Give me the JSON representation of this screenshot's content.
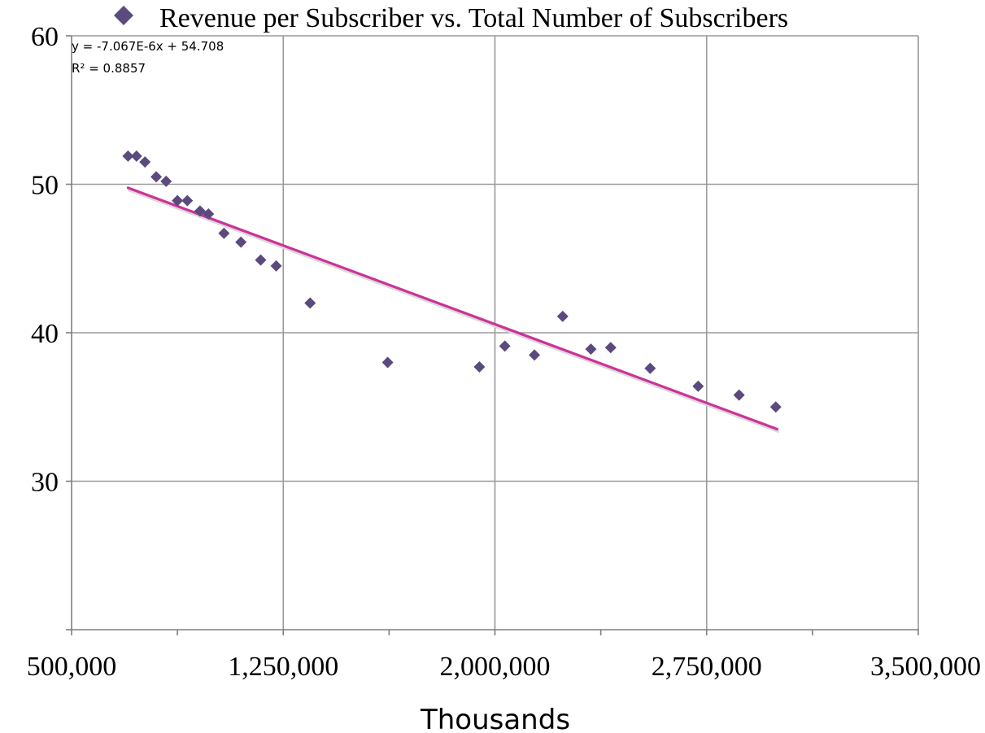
{
  "chart_data": {
    "type": "scatter",
    "title": "",
    "xlabel": "Thousands",
    "ylabel": "",
    "xlim": [
      500000,
      3500000
    ],
    "ylim": [
      20,
      60
    ],
    "x_ticks": [
      500000,
      1250000,
      2000000,
      2750000,
      3500000
    ],
    "x_tick_labels": [
      "500,000",
      "1,250,000",
      "2,000,000",
      "2,750,000",
      "3,500,000"
    ],
    "y_ticks": [
      30,
      40,
      50,
      60
    ],
    "y_tick_labels": [
      "30",
      "40",
      "50",
      "60"
    ],
    "grid": true,
    "legend": {
      "position": "top",
      "entries": [
        "Revenue per Subscriber vs. Total Number of Subscribers"
      ]
    },
    "series": [
      {
        "name": "Revenue per Subscriber vs. Total Number of Subscribers",
        "marker": "diamond",
        "color": "#5b4a7e",
        "x": [
          700000,
          730000,
          760000,
          800000,
          835000,
          875000,
          910000,
          955000,
          985000,
          1040000,
          1100000,
          1170000,
          1225000,
          1345000,
          1620000,
          1945000,
          2035000,
          2140000,
          2240000,
          2340000,
          2410000,
          2550000,
          2720000,
          2865000,
          2995000
        ],
        "y": [
          51.9,
          51.9,
          51.5,
          50.5,
          50.2,
          48.9,
          48.9,
          48.2,
          48.0,
          46.7,
          46.1,
          44.9,
          44.5,
          42.0,
          38.0,
          37.7,
          39.1,
          38.5,
          41.1,
          38.9,
          39.0,
          37.6,
          36.4,
          35.8,
          35.0
        ]
      }
    ],
    "trendline": {
      "type": "linear",
      "color": "#cc3399",
      "slope": -7.067e-06,
      "intercept": 54.708,
      "x_range": [
        700000,
        3000000
      ],
      "equation_label": "y = -7.067E-6x + 54.708",
      "r2_label": "R² = 0.8857"
    }
  }
}
